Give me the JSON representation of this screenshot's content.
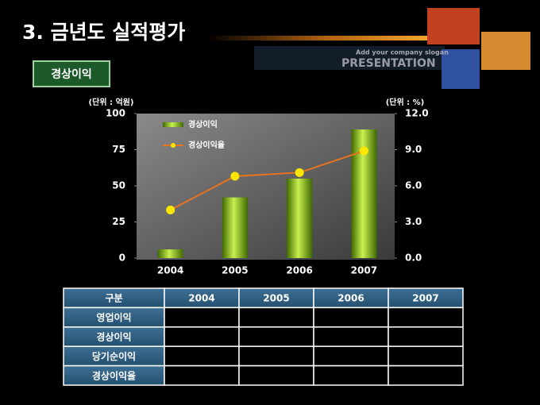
{
  "header": {
    "title": "3. 금년도 실적평가",
    "badge": "경상이익",
    "slogan": "Add your company slogan",
    "brand": "PRESENTATION"
  },
  "chart_data": {
    "type": "bar",
    "y_unit_label": "(단위 : 억원)",
    "y2_unit_label": "(단위 : %)",
    "categories": [
      "2004",
      "2005",
      "2006",
      "2007"
    ],
    "series": [
      {
        "name": "경상이익",
        "type": "bar",
        "color": "#7fb800",
        "values": [
          6,
          42,
          55,
          89
        ]
      },
      {
        "name": "경상이익율",
        "type": "line",
        "axis": "y2",
        "color": "#e8731e",
        "marker_color": "#ffe600",
        "values": [
          4.0,
          6.8,
          7.1,
          8.9
        ]
      }
    ],
    "ylim": [
      0,
      100
    ],
    "yticks": [
      0,
      25,
      50,
      75,
      100
    ],
    "y2lim": [
      0,
      12
    ],
    "y2ticks": [
      {
        "value": 0,
        "label": "0.0"
      },
      {
        "value": 3,
        "label": "3.0"
      },
      {
        "value": 6,
        "label": "6.0"
      },
      {
        "value": 9,
        "label": "9.0"
      },
      {
        "value": 12,
        "label": "12.0"
      }
    ],
    "legend": "top-left"
  },
  "table": {
    "header": [
      "구분",
      "2004",
      "2005",
      "2006",
      "2007"
    ],
    "rows": [
      [
        "영업이익"
      ],
      [
        "경상이익"
      ],
      [
        "당기순이익"
      ],
      [
        "경상이익율"
      ]
    ]
  }
}
